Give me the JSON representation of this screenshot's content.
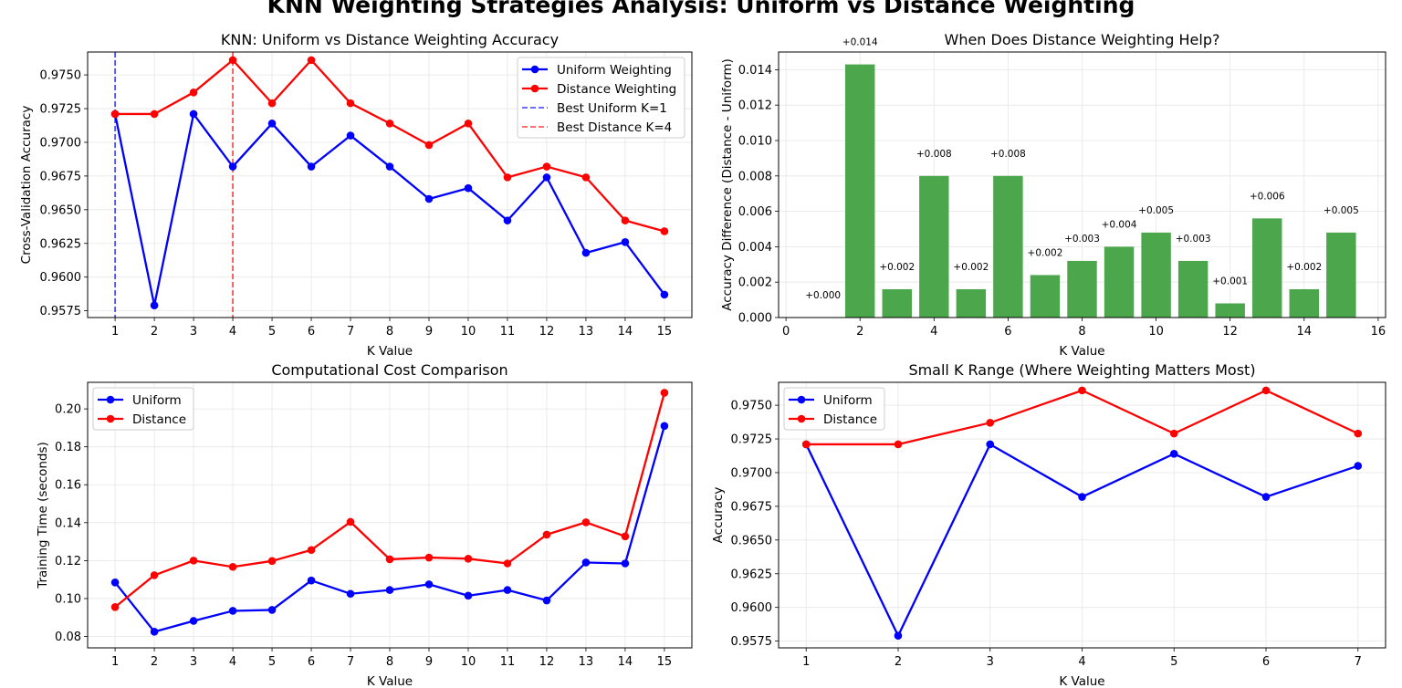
{
  "suptitle": "KNN Weighting Strategies Analysis: Uniform vs Distance Weighting",
  "colors": {
    "uniform": "#0000ff",
    "distance": "#ff0000",
    "bars": "#4ca64c",
    "grid": "#e6e6e6"
  },
  "chart_data": [
    {
      "type": "line",
      "title": "KNN: Uniform vs Distance Weighting Accuracy",
      "xlabel": "K Value",
      "ylabel": "Cross-Validation Accuracy",
      "xlim": [
        0.3,
        15.7
      ],
      "ylim": [
        0.957,
        0.9767
      ],
      "xticks": [
        1,
        2,
        3,
        4,
        5,
        6,
        7,
        8,
        9,
        10,
        11,
        12,
        13,
        14,
        15
      ],
      "xtick_labels": [
        "1",
        "2",
        "3",
        "4",
        "5",
        "6",
        "7",
        "8",
        "9",
        "10",
        "11",
        "12",
        "13",
        "14",
        "15"
      ],
      "yticks": [
        0.9575,
        0.96,
        0.9625,
        0.965,
        0.9675,
        0.97,
        0.9725,
        0.975
      ],
      "ytick_labels": [
        "0.9575",
        "0.9600",
        "0.9625",
        "0.9650",
        "0.9675",
        "0.9700",
        "0.9725",
        "0.9750"
      ],
      "grid": true,
      "legend_position": "upper right",
      "x": [
        1,
        2,
        3,
        4,
        5,
        6,
        7,
        8,
        9,
        10,
        11,
        12,
        13,
        14,
        15
      ],
      "series": [
        {
          "name": "Uniform Weighting",
          "color": "#0000ff",
          "values": [
            0.9721,
            0.9579,
            0.9721,
            0.9682,
            0.9714,
            0.9682,
            0.9705,
            0.9682,
            0.9658,
            0.9666,
            0.9642,
            0.9674,
            0.9618,
            0.9626,
            0.9587
          ]
        },
        {
          "name": "Distance Weighting",
          "color": "#ff0000",
          "values": [
            0.9721,
            0.9721,
            0.9737,
            0.9761,
            0.9729,
            0.9761,
            0.9729,
            0.9714,
            0.9698,
            0.9714,
            0.9674,
            0.9682,
            0.9674,
            0.9642,
            0.9634
          ]
        }
      ],
      "vlines": [
        {
          "name": "Best Uniform K=1",
          "x": 1,
          "color": "#0000ff"
        },
        {
          "name": "Best Distance K=4",
          "x": 4,
          "color": "#ff0000"
        }
      ]
    },
    {
      "type": "bar",
      "title": "When Does Distance Weighting Help?",
      "xlabel": "K Value",
      "ylabel": "Accuracy Difference (Distance - Uniform)",
      "xlim": [
        -0.2,
        16.2
      ],
      "ylim": [
        0,
        0.015
      ],
      "xticks": [
        0,
        2,
        4,
        6,
        8,
        10,
        12,
        14,
        16
      ],
      "xtick_labels": [
        "0",
        "2",
        "4",
        "6",
        "8",
        "10",
        "12",
        "14",
        "16"
      ],
      "yticks": [
        0,
        0.002,
        0.004,
        0.006,
        0.008,
        0.01,
        0.012,
        0.014
      ],
      "ytick_labels": [
        "0.000",
        "0.002",
        "0.004",
        "0.006",
        "0.008",
        "0.010",
        "0.012",
        "0.014"
      ],
      "grid": true,
      "color": "#4ca64c",
      "x": [
        1,
        2,
        3,
        4,
        5,
        6,
        7,
        8,
        9,
        10,
        11,
        12,
        13,
        14,
        15
      ],
      "values": [
        0.0,
        0.0143,
        0.0016,
        0.008,
        0.0016,
        0.008,
        0.0024,
        0.0032,
        0.004,
        0.0048,
        0.0032,
        0.0008,
        0.0056,
        0.0016,
        0.0048
      ],
      "labels": [
        "+0.000",
        "+0.014",
        "+0.002",
        "+0.008",
        "+0.002",
        "+0.008",
        "+0.002",
        "+0.003",
        "+0.004",
        "+0.005",
        "+0.003",
        "+0.001",
        "+0.006",
        "+0.002",
        "+0.005"
      ]
    },
    {
      "type": "line",
      "title": "Computational Cost Comparison",
      "xlabel": "K Value",
      "ylabel": "Training Time (seconds)",
      "xlim": [
        0.3,
        15.7
      ],
      "ylim": [
        0.074,
        0.214
      ],
      "xticks": [
        1,
        2,
        3,
        4,
        5,
        6,
        7,
        8,
        9,
        10,
        11,
        12,
        13,
        14,
        15
      ],
      "xtick_labels": [
        "1",
        "2",
        "3",
        "4",
        "5",
        "6",
        "7",
        "8",
        "9",
        "10",
        "11",
        "12",
        "13",
        "14",
        "15"
      ],
      "yticks": [
        0.08,
        0.1,
        0.12,
        0.14,
        0.16,
        0.18,
        0.2
      ],
      "ytick_labels": [
        "0.08",
        "0.10",
        "0.12",
        "0.14",
        "0.16",
        "0.18",
        "0.20"
      ],
      "grid": true,
      "legend_position": "upper left",
      "x": [
        1,
        2,
        3,
        4,
        5,
        6,
        7,
        8,
        9,
        10,
        11,
        12,
        13,
        14,
        15
      ],
      "series": [
        {
          "name": "Uniform",
          "color": "#0000ff",
          "values": [
            0.1085,
            0.0825,
            0.0882,
            0.0935,
            0.094,
            0.1095,
            0.1025,
            0.1045,
            0.1075,
            0.1015,
            0.1045,
            0.099,
            0.119,
            0.1185,
            0.191
          ]
        },
        {
          "name": "Distance",
          "color": "#ff0000",
          "values": [
            0.0955,
            0.1123,
            0.12,
            0.1167,
            0.1198,
            0.1256,
            0.1404,
            0.1207,
            0.1216,
            0.121,
            0.1185,
            0.1337,
            0.1402,
            0.1328,
            0.2085
          ]
        }
      ]
    },
    {
      "type": "line",
      "title": "Small K Range (Where Weighting Matters Most)",
      "xlabel": "K Value",
      "ylabel": "Accuracy",
      "xlim": [
        0.7,
        7.3
      ],
      "ylim": [
        0.957,
        0.9767
      ],
      "xticks": [
        1,
        2,
        3,
        4,
        5,
        6,
        7
      ],
      "xtick_labels": [
        "1",
        "2",
        "3",
        "4",
        "5",
        "6",
        "7"
      ],
      "yticks": [
        0.9575,
        0.96,
        0.9625,
        0.965,
        0.9675,
        0.97,
        0.9725,
        0.975
      ],
      "ytick_labels": [
        "0.9575",
        "0.9600",
        "0.9625",
        "0.9650",
        "0.9675",
        "0.9700",
        "0.9725",
        "0.9750"
      ],
      "grid": true,
      "legend_position": "upper left",
      "x": [
        1,
        2,
        3,
        4,
        5,
        6,
        7
      ],
      "series": [
        {
          "name": "Uniform",
          "color": "#0000ff",
          "values": [
            0.9721,
            0.9579,
            0.9721,
            0.9682,
            0.9714,
            0.9682,
            0.9705
          ]
        },
        {
          "name": "Distance",
          "color": "#ff0000",
          "values": [
            0.9721,
            0.9721,
            0.9737,
            0.9761,
            0.9729,
            0.9761,
            0.9729
          ]
        }
      ]
    }
  ]
}
